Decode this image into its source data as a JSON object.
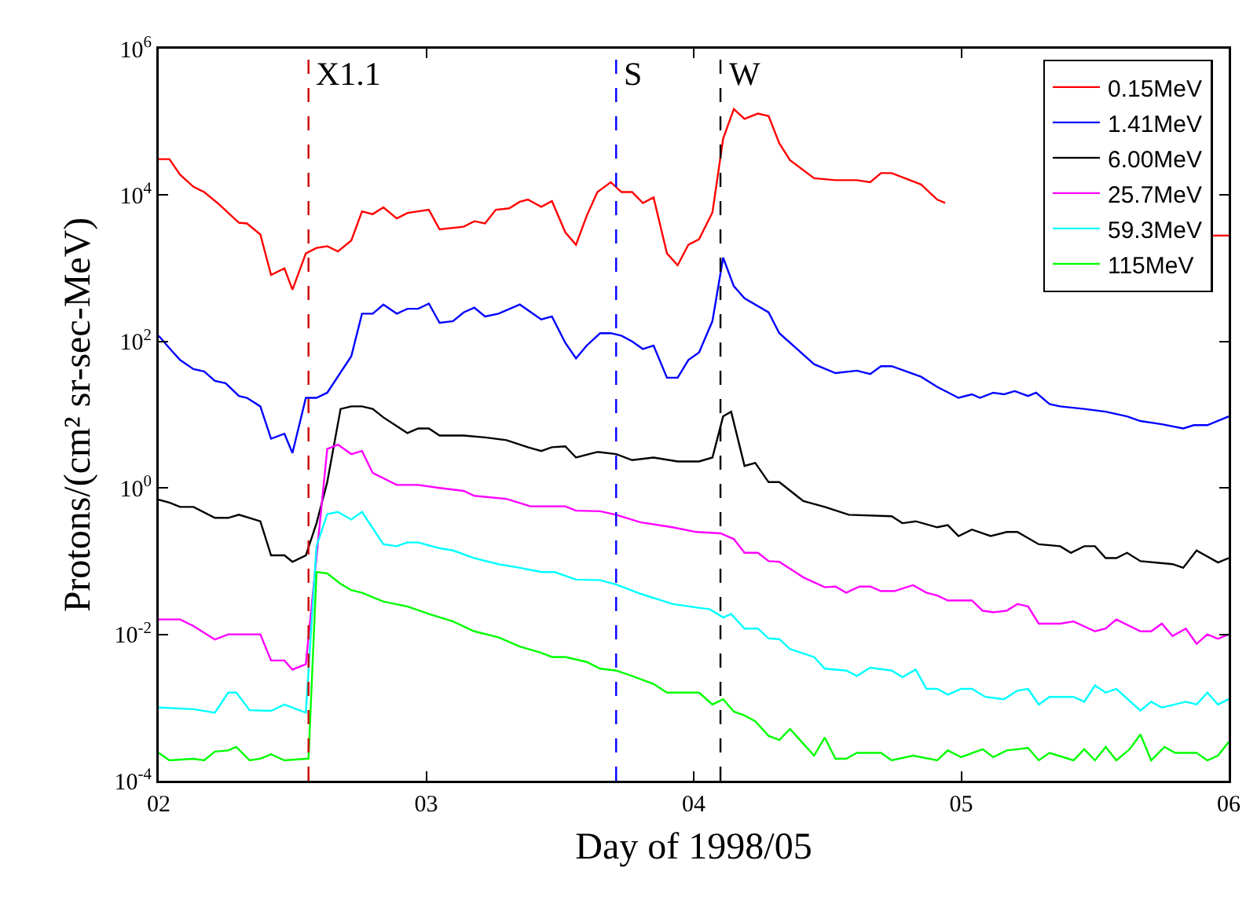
{
  "chart_data": {
    "type": "line",
    "xlabel": "Day of 1998/05",
    "ylabel": "Protons/(cm² sr-sec-MeV)",
    "log": "y",
    "xlim": [
      2,
      6
    ],
    "xticks": [
      {
        "value": 2,
        "label": "02"
      },
      {
        "value": 3,
        "label": "03"
      },
      {
        "value": 4,
        "label": "04"
      },
      {
        "value": 5,
        "label": "05"
      },
      {
        "value": 6,
        "label": "06"
      }
    ],
    "ylim": [
      0.0001,
      1000000
    ],
    "yticks": [
      {
        "value": 0.0001,
        "label": "10$^{-4}$"
      },
      {
        "value": 0.01,
        "label": "10$^{-2}$"
      },
      {
        "value": 1,
        "label": "10$^{0}$"
      },
      {
        "value": 100,
        "label": "10$^{2}$"
      },
      {
        "value": 10000,
        "label": "10$^{4}$"
      },
      {
        "value": 1000000,
        "label": "10$^{6}$"
      }
    ],
    "grid": false,
    "legend": "top right",
    "marker": "none",
    "line_style": "solid",
    "series": [
      {
        "name": "0.15MeV",
        "color": "#ff0000",
        "x": [
          2.0,
          2.04,
          2.08,
          2.13,
          2.17,
          2.22,
          2.3,
          2.33,
          2.38,
          2.42,
          2.47,
          2.5,
          2.55,
          2.59,
          2.63,
          2.67,
          2.72,
          2.76,
          2.8,
          2.84,
          2.89,
          2.93,
          3.01,
          3.05,
          3.14,
          3.18,
          3.22,
          3.26,
          3.31,
          3.35,
          3.38,
          3.43,
          3.47,
          3.52,
          3.56,
          3.6,
          3.64,
          3.69,
          3.73,
          3.77,
          3.81,
          3.85,
          3.9,
          3.94,
          3.98,
          4.02,
          4.07,
          4.11,
          4.15,
          4.19,
          4.24,
          4.28,
          4.32,
          4.36,
          4.45,
          4.53,
          4.61,
          4.66,
          4.7,
          4.74,
          4.85,
          4.91,
          4.94,
          4.99,
          5.94,
          6.0
        ],
        "values": [
          31000,
          31000,
          19000,
          13000,
          11000,
          7800,
          4200,
          4100,
          2900,
          810,
          1000,
          510,
          1600,
          1900,
          2000,
          1700,
          2400,
          6000,
          5500,
          6800,
          4800,
          5700,
          6300,
          3400,
          3700,
          4400,
          4100,
          6300,
          6600,
          8100,
          8700,
          6900,
          8300,
          3100,
          2100,
          5200,
          11000,
          15000,
          11000,
          11000,
          7800,
          9300,
          1600,
          1100,
          2100,
          2500,
          5800,
          59000,
          150000,
          110000,
          130000,
          120000,
          51000,
          30000,
          17000,
          16000,
          16000,
          15000,
          20000,
          20000,
          14000,
          8700,
          7800,
          null,
          2800,
          2800
        ]
      },
      {
        "name": "1.41MeV",
        "color": "#0000ff",
        "x": [
          2.0,
          2.04,
          2.08,
          2.13,
          2.17,
          2.21,
          2.25,
          2.3,
          2.33,
          2.38,
          2.42,
          2.47,
          2.5,
          2.55,
          2.59,
          2.63,
          2.72,
          2.76,
          2.8,
          2.84,
          2.89,
          2.93,
          2.97,
          3.01,
          3.05,
          3.1,
          3.14,
          3.18,
          3.22,
          3.27,
          3.35,
          3.43,
          3.47,
          3.52,
          3.56,
          3.6,
          3.65,
          3.69,
          3.73,
          3.77,
          3.81,
          3.85,
          3.9,
          3.94,
          3.98,
          4.02,
          4.07,
          4.11,
          4.15,
          4.19,
          4.28,
          4.32,
          4.45,
          4.53,
          4.61,
          4.66,
          4.7,
          4.74,
          4.85,
          4.91,
          4.99,
          5.04,
          5.07,
          5.12,
          5.16,
          5.2,
          5.25,
          5.28,
          5.33,
          5.37,
          5.46,
          5.54,
          5.62,
          5.67,
          5.75,
          5.83,
          5.87,
          5.92,
          6.0
        ],
        "values": [
          120,
          81,
          56,
          42,
          39,
          29,
          27,
          18,
          17,
          13,
          4.7,
          5.5,
          3.0,
          17,
          17,
          20,
          63,
          240,
          240,
          320,
          240,
          280,
          280,
          330,
          180,
          190,
          250,
          290,
          220,
          240,
          320,
          200,
          220,
          96,
          59,
          88,
          130,
          130,
          120,
          100,
          79,
          88,
          32,
          32,
          56,
          71,
          190,
          1400,
          570,
          390,
          250,
          130,
          49,
          37,
          40,
          36,
          46,
          46,
          33,
          24,
          17,
          19,
          17,
          20,
          19,
          21,
          18,
          20,
          14,
          13,
          12,
          11,
          9.5,
          8.2,
          7.4,
          6.5,
          7.2,
          7.2,
          9.5
        ]
      },
      {
        "name": "6.00MeV",
        "color": "#000000",
        "x": [
          2.0,
          2.04,
          2.08,
          2.13,
          2.21,
          2.26,
          2.3,
          2.38,
          2.42,
          2.47,
          2.5,
          2.55,
          2.59,
          2.63,
          2.68,
          2.72,
          2.76,
          2.8,
          2.84,
          2.93,
          2.97,
          3.01,
          3.05,
          3.14,
          3.22,
          3.3,
          3.38,
          3.43,
          3.47,
          3.52,
          3.56,
          3.64,
          3.71,
          3.77,
          3.85,
          3.94,
          4.02,
          4.07,
          4.11,
          4.14,
          4.19,
          4.23,
          4.28,
          4.32,
          4.41,
          4.49,
          4.58,
          4.74,
          4.78,
          4.83,
          4.91,
          4.95,
          4.99,
          5.04,
          5.11,
          5.17,
          5.21,
          5.29,
          5.37,
          5.41,
          5.46,
          5.5,
          5.54,
          5.58,
          5.62,
          5.67,
          5.79,
          5.83,
          5.88,
          5.96,
          6.0
        ],
        "values": [
          0.69,
          0.63,
          0.55,
          0.55,
          0.39,
          0.39,
          0.43,
          0.35,
          0.12,
          0.12,
          0.098,
          0.12,
          0.33,
          1.2,
          12,
          13,
          13,
          12,
          9.2,
          5.6,
          6.5,
          6.5,
          5.2,
          5.2,
          4.9,
          4.5,
          3.6,
          3.2,
          3.6,
          3.7,
          2.6,
          3.1,
          2.9,
          2.4,
          2.6,
          2.3,
          2.3,
          2.6,
          9.5,
          11,
          2.0,
          2.2,
          1.2,
          1.2,
          0.66,
          0.55,
          0.43,
          0.41,
          0.33,
          0.35,
          0.29,
          0.31,
          0.22,
          0.27,
          0.22,
          0.25,
          0.25,
          0.17,
          0.16,
          0.13,
          0.16,
          0.16,
          0.11,
          0.11,
          0.13,
          0.1,
          0.091,
          0.081,
          0.14,
          0.096,
          0.11
        ]
      },
      {
        "name": "25.7MeV",
        "color": "#ff00ff",
        "x": [
          2.0,
          2.08,
          2.13,
          2.21,
          2.26,
          2.38,
          2.42,
          2.47,
          2.5,
          2.55,
          2.63,
          2.67,
          2.72,
          2.76,
          2.8,
          2.89,
          2.97,
          3.05,
          3.14,
          3.18,
          3.3,
          3.39,
          3.52,
          3.56,
          3.65,
          3.71,
          3.8,
          3.92,
          4.01,
          4.1,
          4.15,
          4.19,
          4.24,
          4.28,
          4.32,
          4.41,
          4.49,
          4.53,
          4.57,
          4.62,
          4.66,
          4.7,
          4.75,
          4.82,
          4.87,
          4.91,
          4.95,
          5.04,
          5.08,
          5.12,
          5.17,
          5.21,
          5.25,
          5.29,
          5.37,
          5.42,
          5.5,
          5.54,
          5.58,
          5.67,
          5.71,
          5.75,
          5.79,
          5.84,
          5.88,
          5.92,
          5.96,
          6.0
        ],
        "values": [
          0.016,
          0.016,
          0.013,
          0.0085,
          0.01,
          0.01,
          0.0044,
          0.0044,
          0.0033,
          0.0039,
          3.4,
          3.9,
          2.9,
          3.2,
          1.6,
          1.1,
          1.1,
          1.0,
          0.91,
          0.78,
          0.71,
          0.56,
          0.56,
          0.49,
          0.48,
          0.43,
          0.34,
          0.29,
          0.25,
          0.24,
          0.2,
          0.13,
          0.13,
          0.1,
          0.098,
          0.06,
          0.044,
          0.045,
          0.037,
          0.045,
          0.045,
          0.039,
          0.039,
          0.047,
          0.037,
          0.034,
          0.029,
          0.029,
          0.021,
          0.02,
          0.021,
          0.026,
          0.024,
          0.014,
          0.014,
          0.015,
          0.011,
          0.012,
          0.016,
          0.011,
          0.011,
          0.014,
          0.0095,
          0.012,
          0.0074,
          0.01,
          0.0087,
          0.01
        ]
      },
      {
        "name": "59.3MeV",
        "color": "#00ffff",
        "x": [
          2.0,
          2.13,
          2.21,
          2.26,
          2.29,
          2.34,
          2.42,
          2.47,
          2.55,
          2.59,
          2.63,
          2.67,
          2.72,
          2.76,
          2.84,
          2.89,
          2.93,
          2.97,
          3.05,
          3.1,
          3.18,
          3.27,
          3.35,
          3.43,
          3.48,
          3.56,
          3.65,
          3.71,
          3.8,
          3.92,
          4.02,
          4.06,
          4.11,
          4.14,
          4.19,
          4.24,
          4.28,
          4.32,
          4.36,
          4.45,
          4.49,
          4.57,
          4.61,
          4.66,
          4.74,
          4.78,
          4.83,
          4.87,
          4.91,
          4.95,
          5.0,
          5.04,
          5.09,
          5.16,
          5.21,
          5.25,
          5.29,
          5.33,
          5.42,
          5.46,
          5.5,
          5.54,
          5.58,
          5.67,
          5.71,
          5.75,
          5.84,
          5.88,
          5.92,
          5.96,
          6.0
        ],
        "values": [
          0.001,
          0.00095,
          0.00085,
          0.0016,
          0.0016,
          0.00092,
          0.0009,
          0.0011,
          0.00085,
          0.16,
          0.44,
          0.47,
          0.37,
          0.47,
          0.17,
          0.16,
          0.18,
          0.18,
          0.15,
          0.14,
          0.11,
          0.091,
          0.081,
          0.071,
          0.071,
          0.056,
          0.055,
          0.048,
          0.036,
          0.026,
          0.023,
          0.022,
          0.017,
          0.019,
          0.012,
          0.012,
          0.0088,
          0.0086,
          0.0063,
          0.0049,
          0.0034,
          0.0032,
          0.0027,
          0.0035,
          0.0032,
          0.0026,
          0.0033,
          0.0018,
          0.0018,
          0.0015,
          0.0018,
          0.0018,
          0.0014,
          0.0013,
          0.0017,
          0.0018,
          0.0011,
          0.0014,
          0.0014,
          0.0012,
          0.002,
          0.0016,
          0.0018,
          0.00091,
          0.0012,
          0.001,
          0.0012,
          0.0011,
          0.0016,
          0.0011,
          0.0013
        ]
      },
      {
        "name": "115MeV",
        "color": "#00ff00",
        "x": [
          2.0,
          2.04,
          2.13,
          2.17,
          2.21,
          2.26,
          2.29,
          2.34,
          2.38,
          2.42,
          2.47,
          2.55,
          2.56,
          2.59,
          2.63,
          2.68,
          2.72,
          2.76,
          2.84,
          2.93,
          3.01,
          3.1,
          3.18,
          3.27,
          3.35,
          3.43,
          3.47,
          3.52,
          3.6,
          3.65,
          3.71,
          3.77,
          3.85,
          3.9,
          3.94,
          4.02,
          4.07,
          4.11,
          4.15,
          4.19,
          4.23,
          4.28,
          4.32,
          4.36,
          4.45,
          4.49,
          4.53,
          4.57,
          4.61,
          4.7,
          4.74,
          4.82,
          4.91,
          4.95,
          5.0,
          5.08,
          5.12,
          5.17,
          5.25,
          5.29,
          5.33,
          5.42,
          5.46,
          5.5,
          5.54,
          5.58,
          5.63,
          5.67,
          5.71,
          5.76,
          5.8,
          5.88,
          5.92,
          5.96,
          6.0
        ],
        "values": [
          0.00024,
          0.00019,
          0.0002,
          0.00019,
          0.00025,
          0.00026,
          0.00029,
          0.00019,
          0.0002,
          0.00023,
          0.00019,
          0.0002,
          0.0002,
          0.071,
          0.068,
          0.049,
          0.04,
          0.037,
          0.028,
          0.024,
          0.019,
          0.015,
          0.011,
          0.0091,
          0.0068,
          0.0056,
          0.0049,
          0.0049,
          0.0042,
          0.0034,
          0.0032,
          0.0027,
          0.0021,
          0.0016,
          0.0016,
          0.0016,
          0.0011,
          0.0013,
          0.00088,
          0.00078,
          0.00065,
          0.00041,
          0.00036,
          0.00051,
          0.00022,
          0.00039,
          0.0002,
          0.0002,
          0.00024,
          0.00024,
          0.00019,
          0.00022,
          0.00019,
          0.00026,
          0.00021,
          0.00027,
          0.00021,
          0.00026,
          0.00028,
          0.00019,
          0.00024,
          0.00019,
          0.00027,
          0.00019,
          0.00029,
          0.00019,
          0.00027,
          0.00043,
          0.00019,
          0.00029,
          0.00024,
          0.00024,
          0.00019,
          0.00022,
          0.00034
        ]
      }
    ],
    "ref_lines": [
      {
        "axis": "x",
        "value": 2.56,
        "label": "X1.1",
        "color": "#cc0000",
        "line_style": "dashed"
      },
      {
        "axis": "x",
        "value": 3.71,
        "label": "S",
        "color": "#0000ff",
        "line_style": "dashed"
      },
      {
        "axis": "x",
        "value": 4.1,
        "label": "W",
        "color": "#000000",
        "line_style": "dashed"
      }
    ]
  }
}
